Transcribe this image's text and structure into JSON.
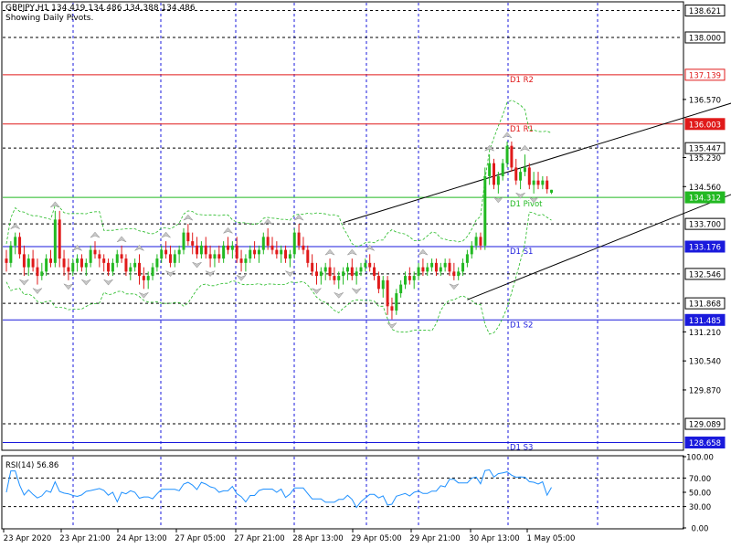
{
  "header": {
    "symbol_line": "GBPJPY,H1  134.419 134.486 134.388 134.486",
    "subtitle": "Showing Daily Pivots."
  },
  "chart_data": {
    "type": "candlestick",
    "symbol": "GBPJPY",
    "timeframe": "H1",
    "ohlc_last": {
      "open": 134.419,
      "high": 134.486,
      "low": 134.388,
      "close": 134.486
    },
    "price_range": [
      128.5,
      138.8
    ],
    "price_ticks": [
      {
        "label": "138.621",
        "value": 138.621,
        "boxed": true,
        "box_color": "#ffffff",
        "text_color": "#000000",
        "border": "#000000"
      },
      {
        "label": "138.000",
        "value": 138.0,
        "boxed": true,
        "box_color": "#ffffff",
        "text_color": "#000000",
        "border": "#000000"
      },
      {
        "label": "137.139",
        "value": 137.139,
        "boxed": true,
        "box_color": "#ffffff",
        "text_color": "#e01a1a",
        "border": "#e01a1a"
      },
      {
        "label": "136.570",
        "value": 136.57,
        "boxed": false
      },
      {
        "label": "136.003",
        "value": 136.003,
        "boxed": true,
        "box_color": "#e01a1a",
        "text_color": "#ffffff",
        "border": "#e01a1a"
      },
      {
        "label": "135.447",
        "value": 135.447,
        "boxed": true,
        "box_color": "#ffffff",
        "text_color": "#000000",
        "border": "#000000"
      },
      {
        "label": "135.230",
        "value": 135.23,
        "boxed": false
      },
      {
        "label": "134.560",
        "value": 134.56,
        "boxed": false
      },
      {
        "label": "134.312",
        "value": 134.312,
        "boxed": true,
        "box_color": "#22b922",
        "text_color": "#ffffff",
        "border": "#22b922"
      },
      {
        "label": "133.700",
        "value": 133.7,
        "boxed": true,
        "box_color": "#ffffff",
        "text_color": "#000000",
        "border": "#000000"
      },
      {
        "label": "133.176",
        "value": 133.176,
        "boxed": true,
        "box_color": "#1a1adc",
        "text_color": "#ffffff",
        "border": "#1a1adc"
      },
      {
        "label": "132.546",
        "value": 132.546,
        "boxed": true,
        "box_color": "#ffffff",
        "text_color": "#000000",
        "border": "#000000"
      },
      {
        "label": "131.868",
        "value": 131.868,
        "boxed": true,
        "box_color": "#ffffff",
        "text_color": "#000000",
        "border": "#000000"
      },
      {
        "label": "131.485",
        "value": 131.485,
        "boxed": true,
        "box_color": "#1a1adc",
        "text_color": "#ffffff",
        "border": "#1a1adc"
      },
      {
        "label": "131.210",
        "value": 131.21,
        "boxed": false
      },
      {
        "label": "130.540",
        "value": 130.54,
        "boxed": false
      },
      {
        "label": "129.870",
        "value": 129.87,
        "boxed": false
      },
      {
        "label": "129.089",
        "value": 129.089,
        "boxed": true,
        "box_color": "#ffffff",
        "text_color": "#000000",
        "border": "#000000"
      },
      {
        "label": "128.658",
        "value": 128.658,
        "boxed": true,
        "box_color": "#1a1adc",
        "text_color": "#ffffff",
        "border": "#1a1adc"
      }
    ],
    "pivot_levels": [
      {
        "label": "D1 R2",
        "value": 137.139,
        "color": "#e01a1a"
      },
      {
        "label": "D1 R1",
        "value": 136.003,
        "color": "#e01a1a"
      },
      {
        "label": "D1 Pivot",
        "value": 134.312,
        "color": "#22b922"
      },
      {
        "label": "D1 S1",
        "value": 133.176,
        "color": "#1a1adc"
      },
      {
        "label": "D1 S2",
        "value": 131.485,
        "color": "#1a1adc"
      },
      {
        "label": "D1 S3",
        "value": 128.658,
        "color": "#1a1adc"
      }
    ],
    "dashed_levels": [
      138.621,
      138.0,
      135.447,
      133.7,
      132.546,
      131.868,
      129.089
    ],
    "trend_channel": {
      "upper": [
        {
          "bar": 76,
          "price": 133.73
        },
        {
          "bar": 180,
          "price": 137.0
        }
      ],
      "lower": [
        {
          "bar": 104,
          "price": 131.95
        },
        {
          "bar": 180,
          "price": 135.05
        }
      ]
    },
    "colors": {
      "bull": "#22b922",
      "bear": "#e01a1a",
      "grid": "#1a1adc",
      "envelope": "#22b922"
    },
    "x_labels": [
      "23 Apr 2020",
      "23 Apr 21:00",
      "24 Apr 13:00",
      "27 Apr 05:00",
      "27 Apr 21:00",
      "28 Apr 13:00",
      "29 Apr 05:00",
      "29 Apr 21:00",
      "30 Apr 13:00",
      "1 May 05:00"
    ],
    "candles": [
      [
        132.9,
        133.1,
        132.6,
        132.8
      ],
      [
        132.8,
        133.3,
        132.7,
        133.2
      ],
      [
        133.2,
        133.5,
        133.0,
        133.4
      ],
      [
        133.4,
        133.5,
        132.9,
        133.0
      ],
      [
        133.0,
        133.2,
        132.5,
        132.7
      ],
      [
        132.7,
        133.0,
        132.5,
        132.9
      ],
      [
        132.9,
        133.1,
        132.6,
        132.7
      ],
      [
        132.7,
        132.9,
        132.3,
        132.5
      ],
      [
        132.5,
        132.8,
        132.4,
        132.6
      ],
      [
        132.6,
        133.0,
        132.5,
        132.9
      ],
      [
        132.9,
        133.1,
        132.7,
        132.8
      ],
      [
        132.8,
        134.0,
        132.7,
        133.8
      ],
      [
        133.8,
        134.0,
        132.7,
        132.9
      ],
      [
        132.9,
        133.1,
        132.5,
        132.7
      ],
      [
        132.7,
        132.9,
        132.4,
        132.6
      ],
      [
        132.6,
        132.9,
        132.5,
        132.8
      ],
      [
        132.8,
        133.0,
        132.6,
        132.9
      ],
      [
        132.9,
        133.0,
        132.6,
        132.7
      ],
      [
        132.7,
        132.9,
        132.5,
        132.8
      ],
      [
        132.8,
        133.2,
        132.7,
        133.1
      ],
      [
        133.1,
        133.3,
        132.9,
        133.0
      ],
      [
        133.0,
        133.1,
        132.7,
        132.9
      ],
      [
        132.9,
        133.0,
        132.6,
        132.8
      ],
      [
        132.8,
        132.9,
        132.5,
        132.6
      ],
      [
        132.6,
        132.9,
        132.5,
        132.8
      ],
      [
        132.8,
        133.1,
        132.7,
        133.0
      ],
      [
        133.0,
        133.2,
        132.8,
        132.9
      ],
      [
        132.9,
        133.0,
        132.5,
        132.6
      ],
      [
        132.6,
        132.8,
        132.4,
        132.7
      ],
      [
        132.7,
        132.9,
        132.6,
        132.8
      ],
      [
        132.8,
        133.0,
        132.3,
        132.5
      ],
      [
        132.5,
        132.7,
        132.2,
        132.4
      ],
      [
        132.4,
        132.6,
        132.2,
        132.5
      ],
      [
        132.5,
        132.8,
        132.4,
        132.7
      ],
      [
        132.7,
        133.0,
        132.6,
        132.9
      ],
      [
        132.9,
        133.2,
        132.8,
        133.1
      ],
      [
        133.1,
        133.3,
        132.9,
        133.0
      ],
      [
        133.0,
        133.2,
        132.7,
        132.8
      ],
      [
        132.8,
        133.1,
        132.7,
        133.0
      ],
      [
        133.0,
        133.2,
        132.8,
        133.1
      ],
      [
        133.1,
        133.6,
        133.0,
        133.5
      ],
      [
        133.5,
        133.7,
        133.2,
        133.3
      ],
      [
        133.3,
        133.5,
        133.0,
        133.2
      ],
      [
        133.2,
        133.4,
        132.9,
        133.0
      ],
      [
        133.0,
        133.3,
        132.9,
        133.2
      ],
      [
        133.2,
        133.4,
        132.9,
        133.0
      ],
      [
        133.0,
        133.2,
        132.7,
        132.9
      ],
      [
        132.9,
        133.1,
        132.7,
        133.0
      ],
      [
        133.0,
        133.2,
        132.8,
        132.9
      ],
      [
        132.9,
        133.3,
        132.8,
        133.2
      ],
      [
        133.2,
        133.4,
        133.0,
        133.1
      ],
      [
        133.1,
        133.3,
        132.9,
        133.2
      ],
      [
        133.2,
        133.4,
        132.8,
        132.9
      ],
      [
        132.9,
        133.1,
        132.6,
        132.8
      ],
      [
        132.8,
        133.0,
        132.6,
        132.9
      ],
      [
        132.9,
        133.2,
        132.8,
        133.1
      ],
      [
        133.1,
        133.3,
        132.9,
        133.0
      ],
      [
        133.0,
        133.2,
        132.8,
        133.1
      ],
      [
        133.1,
        133.5,
        133.0,
        133.4
      ],
      [
        133.4,
        133.6,
        133.1,
        133.2
      ],
      [
        133.2,
        133.4,
        133.0,
        133.1
      ],
      [
        133.1,
        133.3,
        132.9,
        133.0
      ],
      [
        133.0,
        133.2,
        132.8,
        133.1
      ],
      [
        133.1,
        133.2,
        132.8,
        132.9
      ],
      [
        132.9,
        133.1,
        132.7,
        133.0
      ],
      [
        133.0,
        133.6,
        132.9,
        133.5
      ],
      [
        133.5,
        133.7,
        133.1,
        133.2
      ],
      [
        133.2,
        133.4,
        133.0,
        133.1
      ],
      [
        133.1,
        133.2,
        132.7,
        132.8
      ],
      [
        132.8,
        133.0,
        132.5,
        132.6
      ],
      [
        132.6,
        132.8,
        132.3,
        132.5
      ],
      [
        132.5,
        132.7,
        132.3,
        132.6
      ],
      [
        132.6,
        132.8,
        132.4,
        132.7
      ],
      [
        132.7,
        132.9,
        132.4,
        132.5
      ],
      [
        132.5,
        132.7,
        132.3,
        132.4
      ],
      [
        132.4,
        132.6,
        132.2,
        132.5
      ],
      [
        132.5,
        132.7,
        132.3,
        132.6
      ],
      [
        132.6,
        132.8,
        132.4,
        132.7
      ],
      [
        132.7,
        132.9,
        132.4,
        132.5
      ],
      [
        132.5,
        132.7,
        132.3,
        132.6
      ],
      [
        132.6,
        132.8,
        132.5,
        132.7
      ],
      [
        132.7,
        132.9,
        132.6,
        132.8
      ],
      [
        132.8,
        133.0,
        132.6,
        132.7
      ],
      [
        132.7,
        132.8,
        132.4,
        132.5
      ],
      [
        132.5,
        132.6,
        132.1,
        132.2
      ],
      [
        132.2,
        132.5,
        132.0,
        132.4
      ],
      [
        132.4,
        132.5,
        131.6,
        131.8
      ],
      [
        131.8,
        132.0,
        131.5,
        131.7
      ],
      [
        131.7,
        132.2,
        131.6,
        132.1
      ],
      [
        132.1,
        132.4,
        132.0,
        132.3
      ],
      [
        132.3,
        132.6,
        132.2,
        132.5
      ],
      [
        132.5,
        132.7,
        132.3,
        132.4
      ],
      [
        132.4,
        132.6,
        132.2,
        132.5
      ],
      [
        132.5,
        132.8,
        132.4,
        132.7
      ],
      [
        132.7,
        132.9,
        132.5,
        132.6
      ],
      [
        132.6,
        132.8,
        132.5,
        132.7
      ],
      [
        132.7,
        132.9,
        132.6,
        132.8
      ],
      [
        132.8,
        132.9,
        132.5,
        132.6
      ],
      [
        132.6,
        132.8,
        132.5,
        132.7
      ],
      [
        132.7,
        132.9,
        132.6,
        132.8
      ],
      [
        132.8,
        132.9,
        132.5,
        132.6
      ],
      [
        132.6,
        132.8,
        132.4,
        132.5
      ],
      [
        132.5,
        132.7,
        132.4,
        132.6
      ],
      [
        132.6,
        132.9,
        132.5,
        132.8
      ],
      [
        132.8,
        133.1,
        132.7,
        133.0
      ],
      [
        133.0,
        133.3,
        132.9,
        133.2
      ],
      [
        133.2,
        133.5,
        133.1,
        133.4
      ],
      [
        133.4,
        133.5,
        133.1,
        133.2
      ],
      [
        133.2,
        135.0,
        133.1,
        134.8
      ],
      [
        134.8,
        135.3,
        134.6,
        135.1
      ],
      [
        135.1,
        135.2,
        134.5,
        134.6
      ],
      [
        134.6,
        134.9,
        134.4,
        134.8
      ],
      [
        134.8,
        135.2,
        134.7,
        135.1
      ],
      [
        135.1,
        135.6,
        135.0,
        135.5
      ],
      [
        135.5,
        135.6,
        134.9,
        135.0
      ],
      [
        135.0,
        135.2,
        134.6,
        134.7
      ],
      [
        134.7,
        135.0,
        134.5,
        134.9
      ],
      [
        134.9,
        135.3,
        134.8,
        135.0
      ],
      [
        135.0,
        135.1,
        134.5,
        134.6
      ],
      [
        134.6,
        134.9,
        134.4,
        134.7
      ],
      [
        134.7,
        134.9,
        134.5,
        134.6
      ],
      [
        134.6,
        134.8,
        134.5,
        134.7
      ],
      [
        134.7,
        134.8,
        134.4,
        134.5
      ],
      [
        134.419,
        134.486,
        134.388,
        134.486
      ]
    ],
    "rsi": {
      "label": "RSI(14) 56.86",
      "period": 14,
      "value": 56.86,
      "levels": [
        70,
        30
      ],
      "tick_labels": [
        "100.00",
        "70.00",
        "50.00",
        "30.00",
        "0.00"
      ],
      "tick_values": [
        100,
        70,
        50,
        30,
        0
      ],
      "color": "#1e90ff"
    }
  }
}
